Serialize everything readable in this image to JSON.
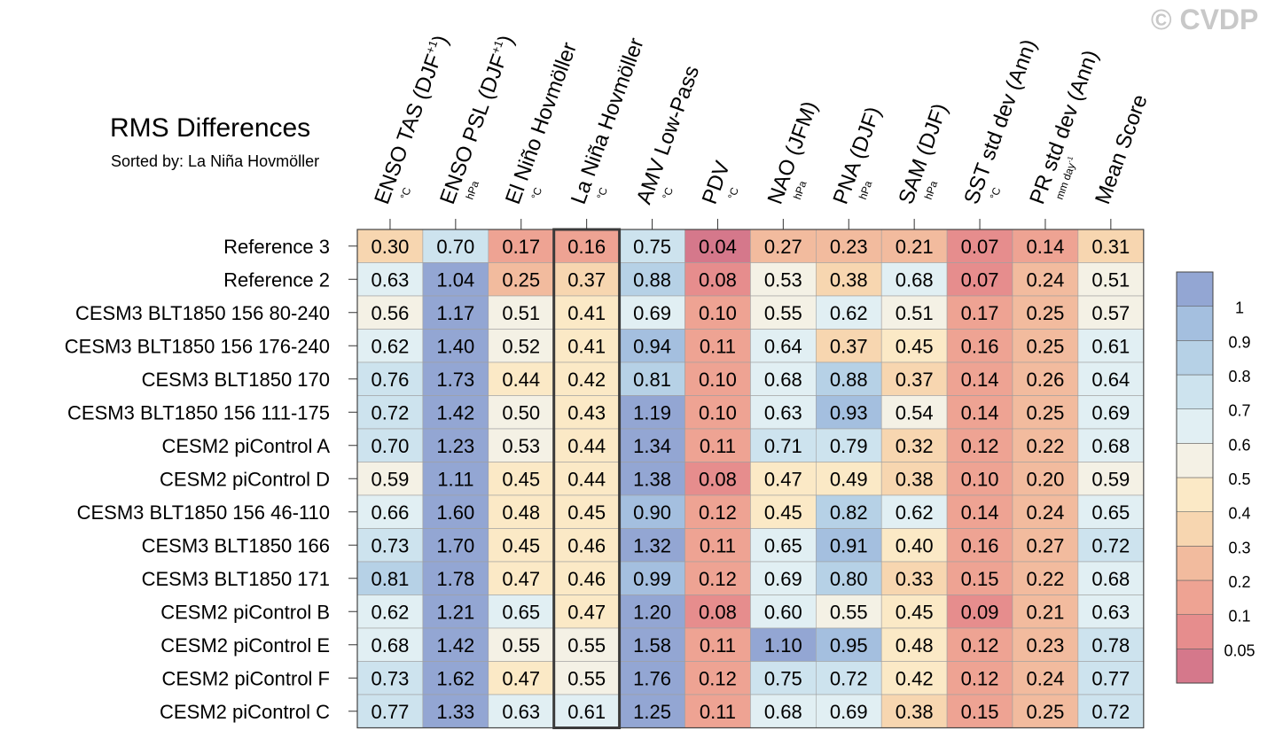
{
  "chart_data": {
    "type": "heatmap",
    "title": "RMS Differences",
    "subtitle": "Sorted by: La Niña Hovmöller",
    "watermark": "© CVDP",
    "columns": [
      {
        "name": "ENSO TAS (DJF+1)",
        "label": "ENSO TAS (DJF",
        "sup": "+1",
        "close": ")",
        "unit": "°C"
      },
      {
        "name": "ENSO PSL (DJF+1)",
        "label": "ENSO PSL (DJF",
        "sup": "+1",
        "close": ")",
        "unit": "hPa"
      },
      {
        "name": "El Niño Hovmöller",
        "label": "El Niño Hovmöller",
        "sup": "",
        "close": "",
        "unit": "°C"
      },
      {
        "name": "La Niña Hovmöller",
        "label": "La Niña Hovmöller",
        "sup": "",
        "close": "",
        "unit": "°C"
      },
      {
        "name": "AMV Low-Pass",
        "label": "AMV Low-Pass",
        "sup": "",
        "close": "",
        "unit": "°C"
      },
      {
        "name": "PDV",
        "label": "PDV",
        "sup": "",
        "close": "",
        "unit": "°C"
      },
      {
        "name": "NAO (JFM)",
        "label": "NAO (JFM)",
        "sup": "",
        "close": "",
        "unit": "hPa"
      },
      {
        "name": "PNA (DJF)",
        "label": "PNA (DJF)",
        "sup": "",
        "close": "",
        "unit": "hPa"
      },
      {
        "name": "SAM (DJF)",
        "label": "SAM (DJF)",
        "sup": "",
        "close": "",
        "unit": "hPa"
      },
      {
        "name": "SST std dev (Ann)",
        "label": "SST std dev (Ann)",
        "sup": "",
        "close": "",
        "unit": "°C"
      },
      {
        "name": "PR std dev (Ann)",
        "label": "PR std dev (Ann)",
        "sup": "",
        "close": "",
        "unit": "mm day-1"
      },
      {
        "name": "Mean Score",
        "label": "Mean Score",
        "sup": "",
        "close": "",
        "unit": ""
      }
    ],
    "highlight_column": "La Niña Hovmöller",
    "rows": [
      "Reference 3",
      "Reference 2",
      "CESM3 BLT1850 156 80-240",
      "CESM3 BLT1850 156 176-240",
      "CESM3 BLT1850 170",
      "CESM3 BLT1850 156 111-175",
      "CESM2 piControl A",
      "CESM2 piControl D",
      "CESM3 BLT1850 156 46-110",
      "CESM3 BLT1850 166",
      "CESM3 BLT1850 171",
      "CESM2 piControl B",
      "CESM2 piControl E",
      "CESM2 piControl F",
      "CESM2 piControl C"
    ],
    "values": [
      [
        0.3,
        0.7,
        0.17,
        0.16,
        0.75,
        0.04,
        0.27,
        0.23,
        0.21,
        0.07,
        0.14,
        0.31
      ],
      [
        0.63,
        1.04,
        0.25,
        0.37,
        0.88,
        0.08,
        0.53,
        0.38,
        0.68,
        0.07,
        0.24,
        0.51
      ],
      [
        0.56,
        1.17,
        0.51,
        0.41,
        0.69,
        0.1,
        0.55,
        0.62,
        0.51,
        0.17,
        0.25,
        0.57
      ],
      [
        0.62,
        1.4,
        0.52,
        0.41,
        0.94,
        0.11,
        0.64,
        0.37,
        0.45,
        0.16,
        0.25,
        0.61
      ],
      [
        0.76,
        1.73,
        0.44,
        0.42,
        0.81,
        0.1,
        0.68,
        0.88,
        0.37,
        0.14,
        0.26,
        0.64
      ],
      [
        0.72,
        1.42,
        0.5,
        0.43,
        1.19,
        0.1,
        0.63,
        0.93,
        0.54,
        0.14,
        0.25,
        0.69
      ],
      [
        0.7,
        1.23,
        0.53,
        0.44,
        1.34,
        0.11,
        0.71,
        0.79,
        0.32,
        0.12,
        0.22,
        0.68
      ],
      [
        0.59,
        1.11,
        0.45,
        0.44,
        1.38,
        0.08,
        0.47,
        0.49,
        0.38,
        0.1,
        0.2,
        0.59
      ],
      [
        0.66,
        1.6,
        0.48,
        0.45,
        0.9,
        0.12,
        0.45,
        0.82,
        0.62,
        0.14,
        0.24,
        0.65
      ],
      [
        0.73,
        1.7,
        0.45,
        0.46,
        1.32,
        0.11,
        0.65,
        0.91,
        0.4,
        0.16,
        0.27,
        0.72
      ],
      [
        0.81,
        1.78,
        0.47,
        0.46,
        0.99,
        0.12,
        0.69,
        0.8,
        0.33,
        0.15,
        0.22,
        0.68
      ],
      [
        0.62,
        1.21,
        0.65,
        0.47,
        1.2,
        0.08,
        0.6,
        0.55,
        0.45,
        0.09,
        0.21,
        0.63
      ],
      [
        0.68,
        1.42,
        0.55,
        0.55,
        1.58,
        0.11,
        1.1,
        0.95,
        0.48,
        0.12,
        0.23,
        0.78
      ],
      [
        0.73,
        1.62,
        0.47,
        0.55,
        1.76,
        0.12,
        0.75,
        0.72,
        0.42,
        0.12,
        0.24,
        0.77
      ],
      [
        0.77,
        1.33,
        0.63,
        0.61,
        1.25,
        0.11,
        0.68,
        0.69,
        0.38,
        0.15,
        0.25,
        0.72
      ]
    ],
    "colorbar": {
      "levels": [
        "0.05",
        "0.1",
        "0.2",
        "0.3",
        "0.4",
        "0.5",
        "0.6",
        "0.7",
        "0.8",
        "0.9",
        "1"
      ],
      "colors": [
        "#d5788b",
        "#e68d8d",
        "#eea393",
        "#f2bb9e",
        "#f7d6b0",
        "#fbe9c6",
        "#f4f1e5",
        "#e1eff3",
        "#cde3ee",
        "#b6d1e6",
        "#a4bfdf",
        "#93a6d3"
      ]
    }
  }
}
